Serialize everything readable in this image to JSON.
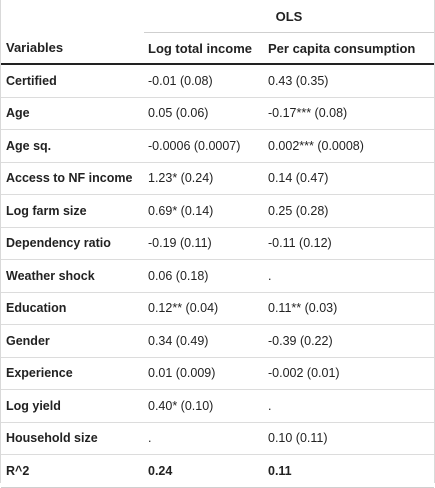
{
  "table": {
    "group_label": "OLS",
    "headers": {
      "variables": "Variables",
      "col1": "Log total income",
      "col2": "Per capita consumption"
    },
    "rows": [
      {
        "variable": "Certified",
        "col1": "-0.01 (0.08)",
        "col2": "0.43 (0.35)"
      },
      {
        "variable": "Age",
        "col1": "0.05 (0.06)",
        "col2": "-0.17*** (0.08)"
      },
      {
        "variable": "Age sq.",
        "col1": "-0.0006 (0.0007)",
        "col2": "0.002*** (0.0008)"
      },
      {
        "variable": "Access to NF income",
        "col1": "1.23* (0.24)",
        "col2": "0.14 (0.47)"
      },
      {
        "variable": "Log farm size",
        "col1": "0.69* (0.14)",
        "col2": "0.25 (0.28)"
      },
      {
        "variable": "Dependency ratio",
        "col1": "-0.19 (0.11)",
        "col2": "-0.11 (0.12)"
      },
      {
        "variable": "Weather shock",
        "col1": "0.06 (0.18)",
        "col2": "."
      },
      {
        "variable": "Education",
        "col1": "0.12** (0.04)",
        "col2": "0.11** (0.03)"
      },
      {
        "variable": "Gender",
        "col1": "0.34 (0.49)",
        "col2": "-0.39 (0.22)"
      },
      {
        "variable": "Experience",
        "col1": "0.01 (0.009)",
        "col2": "-0.002 (0.01)"
      },
      {
        "variable": "Log yield",
        "col1": "0.40* (0.10)",
        "col2": "."
      },
      {
        "variable": "Household size",
        "col1": ".",
        "col2": "0.10 (0.11)"
      },
      {
        "variable": "R^2",
        "col1": "0.24",
        "col2": "0.11"
      }
    ]
  }
}
